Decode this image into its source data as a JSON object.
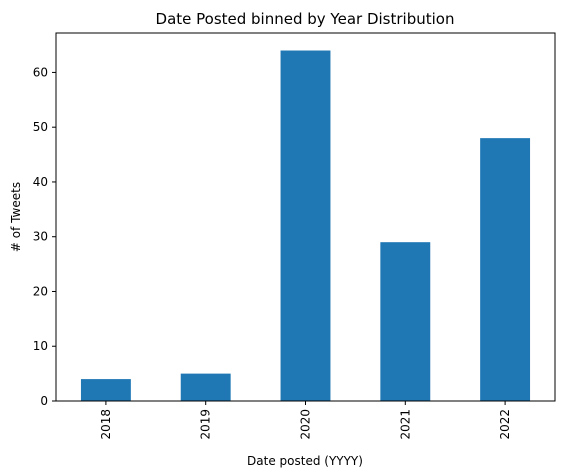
{
  "chart_data": {
    "type": "bar",
    "title": "Date Posted binned by Year Distribution",
    "xlabel": "Date posted (YYYY)",
    "ylabel": "# of Tweets",
    "categories": [
      "2018",
      "2019",
      "2020",
      "2021",
      "2022"
    ],
    "values": [
      4,
      5,
      64,
      29,
      48
    ],
    "ylim": [
      0,
      67.2
    ],
    "yticks": [
      0,
      10,
      20,
      30,
      40,
      50,
      60
    ],
    "grid": false,
    "bar_color": "#1f77b4"
  }
}
